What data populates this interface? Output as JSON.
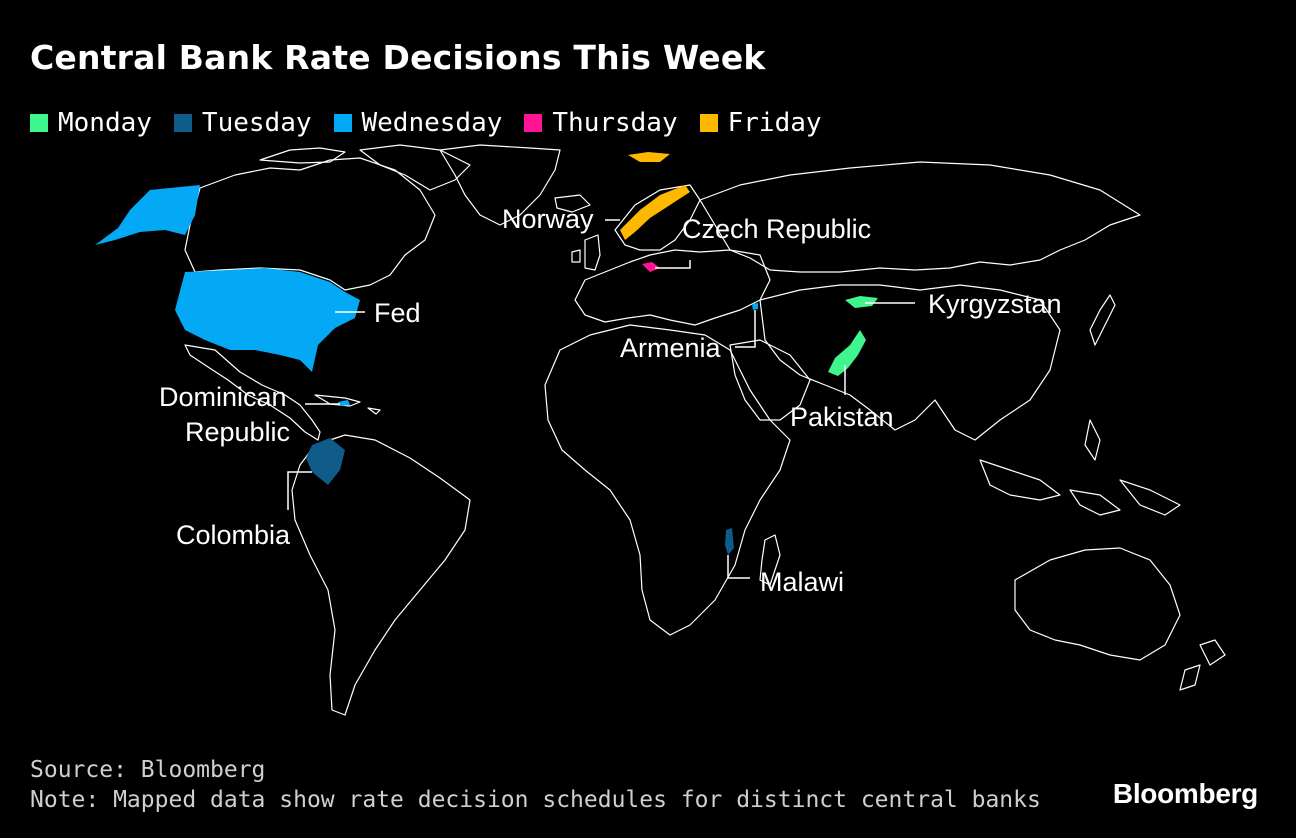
{
  "title": "Central Bank Rate Decisions This Week",
  "legend": [
    {
      "label": "Monday",
      "color": "#3ef58e"
    },
    {
      "label": "Tuesday",
      "color": "#0f5c8a"
    },
    {
      "label": "Wednesday",
      "color": "#03a9f4"
    },
    {
      "label": "Thursday",
      "color": "#ff1493"
    },
    {
      "label": "Friday",
      "color": "#ffb800"
    }
  ],
  "labels": {
    "norway": "Norway",
    "czech": "Czech Republic",
    "fed": "Fed",
    "kyrgyzstan": "Kyrgyzstan",
    "armenia": "Armenia",
    "pakistan": "Pakistan",
    "dominican_1": "Dominican",
    "dominican_2": "Republic",
    "colombia": "Colombia",
    "malawi": "Malawi"
  },
  "footer": {
    "source": "Source: Bloomberg",
    "note": "Note: Mapped data show rate decision schedules for distinct central banks"
  },
  "brand": "Bloomberg"
}
